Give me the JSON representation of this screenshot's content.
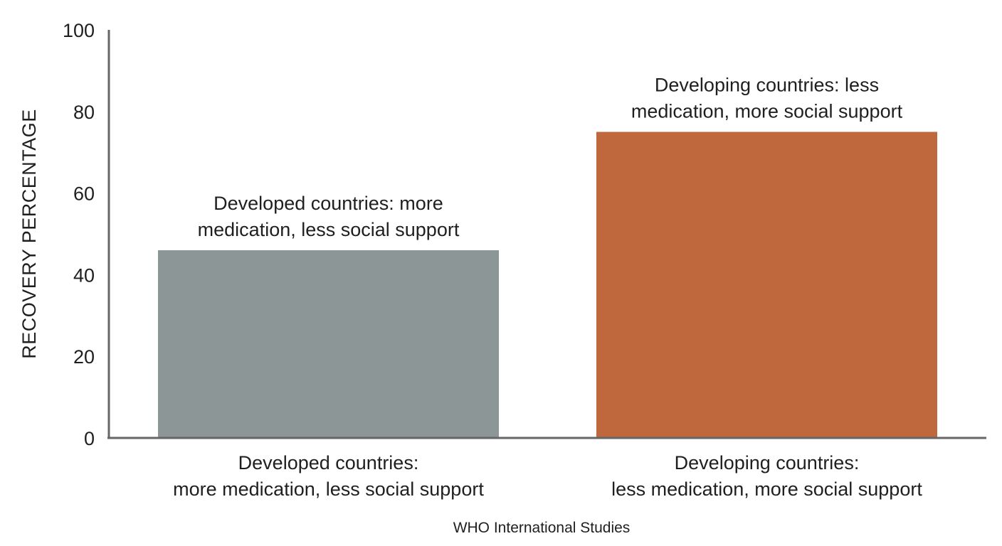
{
  "chart_data": {
    "type": "bar",
    "title": "",
    "xlabel": "WHO International Studies",
    "ylabel": "RECOVERY PERCENTAGE",
    "ylim": [
      0,
      100
    ],
    "yticks": [
      "0",
      "20",
      "40",
      "60",
      "80",
      "100"
    ],
    "grid": false,
    "categories": [
      {
        "line1": "Developed countries:",
        "line2": "more medication, less social support"
      },
      {
        "line1": "Developing countries:",
        "line2": "less medication, more social support"
      }
    ],
    "values": [
      46,
      75
    ],
    "colors": [
      "#8c9696",
      "#bf683d"
    ],
    "annotations": [
      {
        "line1": "Developed countries: more",
        "line2": "medication, less social support"
      },
      {
        "line1": "Developing countries: less",
        "line2": "medication, more social support"
      }
    ]
  }
}
